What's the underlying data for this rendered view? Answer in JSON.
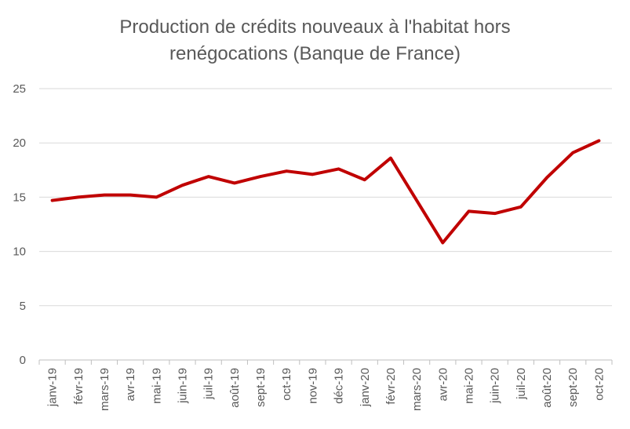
{
  "chart_data": {
    "type": "line",
    "title_line1": "Production de crédits nouveaux à l'habitat hors",
    "title_line2": "renégocations (Banque de France)",
    "xlabel": "",
    "ylabel": "",
    "ylim": [
      0,
      25
    ],
    "yticks": [
      0,
      5,
      10,
      15,
      20,
      25
    ],
    "grid": true,
    "legend": "none",
    "categories": [
      "janv-19",
      "févr-19",
      "mars-19",
      "avr-19",
      "mai-19",
      "juin-19",
      "juil-19",
      "août-19",
      "sept-19",
      "oct-19",
      "nov-19",
      "déc-19",
      "janv-20",
      "févr-20",
      "mars-20",
      "avr-20",
      "mai-20",
      "juin-20",
      "juil-20",
      "août-20",
      "sept-20",
      "oct-20"
    ],
    "series": [
      {
        "name": "Production",
        "color": "#C00000",
        "values": [
          14.7,
          15.0,
          15.2,
          15.2,
          15.0,
          16.1,
          16.9,
          16.3,
          16.9,
          17.4,
          17.1,
          17.6,
          16.6,
          18.6,
          14.7,
          10.8,
          13.7,
          13.5,
          14.1,
          16.8,
          19.1,
          20.2
        ]
      }
    ]
  }
}
